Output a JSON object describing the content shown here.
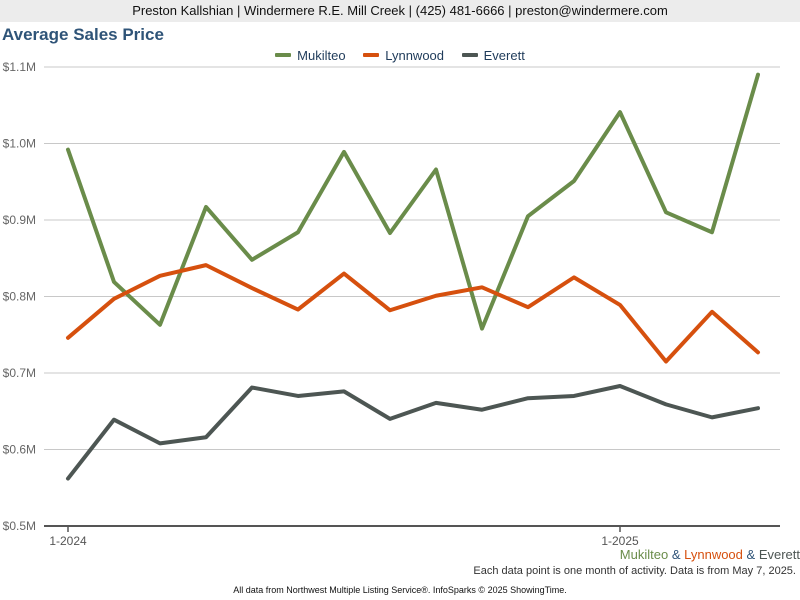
{
  "header": {
    "text": "Preston Kallshian | Windermere R.E. Mill Creek | (425) 481-6666 | preston@windermere.com"
  },
  "chart_data": {
    "type": "line",
    "title": "Average Sales Price",
    "y_tick_labels": [
      "$0.5M",
      "$0.6M",
      "$0.7M",
      "$0.8M",
      "$0.9M",
      "$1.0M",
      "$1.1M"
    ],
    "y_ticks": [
      0.5,
      0.6,
      0.7,
      0.8,
      0.9,
      1.0,
      1.1
    ],
    "ylim": [
      0.5,
      1.1
    ],
    "x": [
      "2024-01",
      "2024-02",
      "2024-03",
      "2024-04",
      "2024-05",
      "2024-06",
      "2024-07",
      "2024-08",
      "2024-09",
      "2024-10",
      "2024-11",
      "2024-12",
      "2025-01",
      "2025-02",
      "2025-03",
      "2025-04"
    ],
    "x_tick_labels": [
      {
        "x": "2024-01",
        "label": "1-2024"
      },
      {
        "x": "2025-01",
        "label": "1-2025"
      }
    ],
    "grid": true,
    "legend_position": "top-center",
    "series": [
      {
        "name": "Mukilteo",
        "color": "#6a8c4a",
        "values": [
          0.992,
          0.819,
          0.763,
          0.917,
          0.848,
          0.884,
          0.989,
          0.883,
          0.966,
          0.758,
          0.905,
          0.951,
          1.041,
          0.91,
          0.884,
          1.09
        ]
      },
      {
        "name": "Lynnwood",
        "color": "#d6500e",
        "values": [
          0.746,
          0.797,
          0.827,
          0.841,
          0.811,
          0.783,
          0.83,
          0.782,
          0.801,
          0.812,
          0.786,
          0.825,
          0.789,
          0.715,
          0.78,
          0.727
        ]
      },
      {
        "name": "Everett",
        "color": "#4d5653",
        "values": [
          0.562,
          0.639,
          0.608,
          0.616,
          0.681,
          0.67,
          0.676,
          0.64,
          0.661,
          0.652,
          0.667,
          0.67,
          0.683,
          0.659,
          0.642,
          0.654
        ]
      }
    ]
  },
  "footer_legend": {
    "mukilteo": "Mukilteo",
    "sep1": " & ",
    "lynnwood": "Lynnwood",
    "sep2": " & ",
    "everett": "Everett"
  },
  "note": "Each data point is one month of activity. Data is from May 7, 2025.",
  "source": "All data from Northwest Multiple Listing Service®. InfoSparks © 2025 ShowingTime."
}
